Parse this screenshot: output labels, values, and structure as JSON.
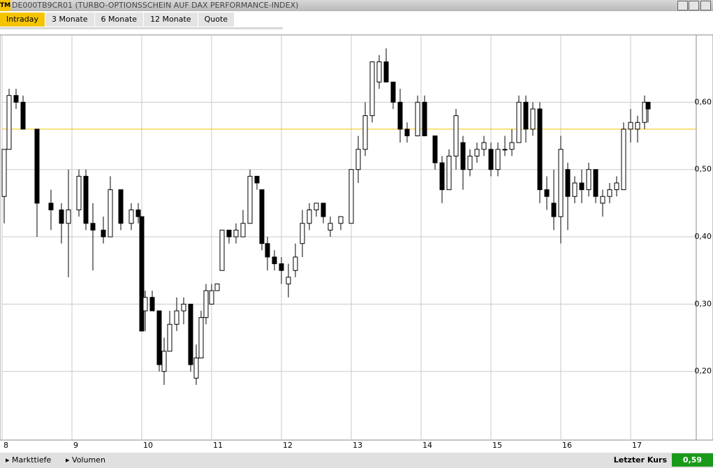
{
  "window": {
    "logo": "TM",
    "title": "DE000TB9CR01 (TURBO-OPTIONSSCHEIN AUF DAX PERFORMANCE-INDEX)"
  },
  "tabs": [
    "Intraday",
    "3 Monate",
    "6 Monate",
    "12 Monate",
    "Quote"
  ],
  "chart_data": {
    "type": "candlestick",
    "x": [
      8.03,
      8.1,
      8.2,
      8.3,
      8.5,
      8.7,
      8.85,
      8.95,
      9.1,
      9.2,
      9.3,
      9.45,
      9.55,
      9.7,
      9.85,
      9.95,
      10.0,
      10.05,
      10.15,
      10.25,
      10.32,
      10.4,
      10.5,
      10.6,
      10.7,
      10.78,
      10.85,
      10.92,
      11.0,
      11.08,
      11.15,
      11.25,
      11.35,
      11.45,
      11.55,
      11.65,
      11.72,
      11.8,
      11.9,
      12.0,
      12.1,
      12.2,
      12.3,
      12.4,
      12.5,
      12.6,
      12.7,
      12.85,
      13.0,
      13.1,
      13.2,
      13.3,
      13.4,
      13.5,
      13.6,
      13.7,
      13.8,
      13.95,
      14.05,
      14.2,
      14.3,
      14.4,
      14.5,
      14.6,
      14.7,
      14.8,
      14.9,
      15.0,
      15.1,
      15.2,
      15.3,
      15.4,
      15.5,
      15.6,
      15.7,
      15.8,
      15.9,
      16.0,
      16.1,
      16.2,
      16.3,
      16.4,
      16.5,
      16.6,
      16.7,
      16.8,
      16.9,
      17.0,
      17.1,
      17.2,
      17.25
    ],
    "open": [
      0.46,
      0.53,
      0.61,
      0.6,
      0.56,
      0.45,
      0.44,
      0.42,
      0.44,
      0.49,
      0.42,
      0.41,
      0.4,
      0.47,
      0.42,
      0.44,
      0.43,
      0.29,
      0.31,
      0.29,
      0.2,
      0.23,
      0.27,
      0.29,
      0.3,
      0.19,
      0.22,
      0.28,
      0.3,
      0.32,
      0.35,
      0.41,
      0.4,
      0.4,
      0.42,
      0.49,
      0.47,
      0.39,
      0.37,
      0.36,
      0.33,
      0.35,
      0.39,
      0.42,
      0.44,
      0.45,
      0.41,
      0.42,
      0.42,
      0.5,
      0.53,
      0.58,
      0.63,
      0.66,
      0.63,
      0.6,
      0.56,
      0.55,
      0.6,
      0.55,
      0.51,
      0.47,
      0.52,
      0.54,
      0.5,
      0.52,
      0.53,
      0.53,
      0.5,
      0.53,
      0.53,
      0.54,
      0.6,
      0.56,
      0.59,
      0.47,
      0.45,
      0.43,
      0.5,
      0.46,
      0.48,
      0.47,
      0.5,
      0.45,
      0.46,
      0.47,
      0.47,
      0.56,
      0.56,
      0.57,
      0.6
    ],
    "high": [
      0.53,
      0.62,
      0.62,
      0.61,
      0.56,
      0.47,
      0.45,
      0.5,
      0.5,
      0.5,
      0.45,
      0.43,
      0.49,
      0.47,
      0.45,
      0.45,
      0.43,
      0.32,
      0.32,
      0.29,
      0.25,
      0.29,
      0.31,
      0.31,
      0.3,
      0.24,
      0.29,
      0.33,
      0.33,
      0.33,
      0.41,
      0.41,
      0.42,
      0.44,
      0.5,
      0.49,
      0.47,
      0.4,
      0.38,
      0.37,
      0.36,
      0.39,
      0.44,
      0.45,
      0.45,
      0.45,
      0.43,
      0.43,
      0.5,
      0.55,
      0.6,
      0.66,
      0.67,
      0.68,
      0.63,
      0.62,
      0.57,
      0.61,
      0.61,
      0.55,
      0.52,
      0.53,
      0.59,
      0.55,
      0.53,
      0.54,
      0.55,
      0.54,
      0.54,
      0.55,
      0.56,
      0.61,
      0.61,
      0.6,
      0.6,
      0.49,
      0.5,
      0.55,
      0.51,
      0.49,
      0.5,
      0.51,
      0.5,
      0.47,
      0.48,
      0.49,
      0.57,
      0.59,
      0.58,
      0.61,
      0.6
    ],
    "low": [
      0.42,
      0.53,
      0.59,
      0.56,
      0.4,
      0.41,
      0.39,
      0.34,
      0.43,
      0.41,
      0.35,
      0.39,
      0.4,
      0.41,
      0.41,
      0.42,
      0.26,
      0.26,
      0.29,
      0.2,
      0.18,
      0.23,
      0.26,
      0.27,
      0.2,
      0.18,
      0.22,
      0.27,
      0.3,
      0.32,
      0.35,
      0.39,
      0.39,
      0.4,
      0.42,
      0.47,
      0.38,
      0.35,
      0.35,
      0.33,
      0.31,
      0.34,
      0.37,
      0.41,
      0.43,
      0.42,
      0.4,
      0.41,
      0.42,
      0.48,
      0.52,
      0.57,
      0.62,
      0.63,
      0.59,
      0.54,
      0.54,
      0.55,
      0.55,
      0.5,
      0.45,
      0.47,
      0.5,
      0.47,
      0.49,
      0.51,
      0.52,
      0.49,
      0.49,
      0.52,
      0.52,
      0.54,
      0.54,
      0.55,
      0.45,
      0.44,
      0.41,
      0.39,
      0.41,
      0.45,
      0.45,
      0.46,
      0.45,
      0.43,
      0.45,
      0.46,
      0.47,
      0.54,
      0.54,
      0.56,
      0.57
    ],
    "close": [
      0.53,
      0.61,
      0.6,
      0.56,
      0.45,
      0.44,
      0.42,
      0.44,
      0.49,
      0.42,
      0.41,
      0.4,
      0.47,
      0.42,
      0.44,
      0.43,
      0.26,
      0.31,
      0.29,
      0.21,
      0.23,
      0.27,
      0.29,
      0.3,
      0.21,
      0.22,
      0.28,
      0.32,
      0.32,
      0.33,
      0.41,
      0.4,
      0.41,
      0.42,
      0.49,
      0.48,
      0.39,
      0.37,
      0.36,
      0.35,
      0.34,
      0.37,
      0.42,
      0.44,
      0.45,
      0.43,
      0.42,
      0.43,
      0.5,
      0.53,
      0.58,
      0.66,
      0.66,
      0.63,
      0.6,
      0.56,
      0.55,
      0.6,
      0.55,
      0.51,
      0.47,
      0.52,
      0.58,
      0.5,
      0.52,
      0.53,
      0.54,
      0.5,
      0.53,
      0.53,
      0.54,
      0.6,
      0.56,
      0.59,
      0.47,
      0.46,
      0.43,
      0.53,
      0.46,
      0.48,
      0.47,
      0.5,
      0.46,
      0.46,
      0.47,
      0.48,
      0.56,
      0.57,
      0.57,
      0.6,
      0.59
    ],
    "xlim": [
      8,
      17.94
    ],
    "xticks": [
      8,
      9,
      10,
      11,
      12,
      13,
      14,
      15,
      16,
      17
    ],
    "ylim": [
      0.098,
      0.7
    ],
    "yticks": [
      {
        "value": 0.2,
        "label": "0,20"
      },
      {
        "value": 0.3,
        "label": "0,30"
      },
      {
        "value": 0.4,
        "label": "0,40"
      },
      {
        "value": 0.5,
        "label": "0,50"
      },
      {
        "value": 0.6,
        "label": "0,60"
      }
    ],
    "reference_line": 0.56,
    "reference_color": "#f0c000",
    "up_color": "#ffffff",
    "down_color": "#000000",
    "grid": true
  },
  "footer": {
    "buttons": [
      "Markttiefe",
      "Volumen"
    ],
    "last_price_label": "Letzter Kurs",
    "last_price": "0,59"
  }
}
